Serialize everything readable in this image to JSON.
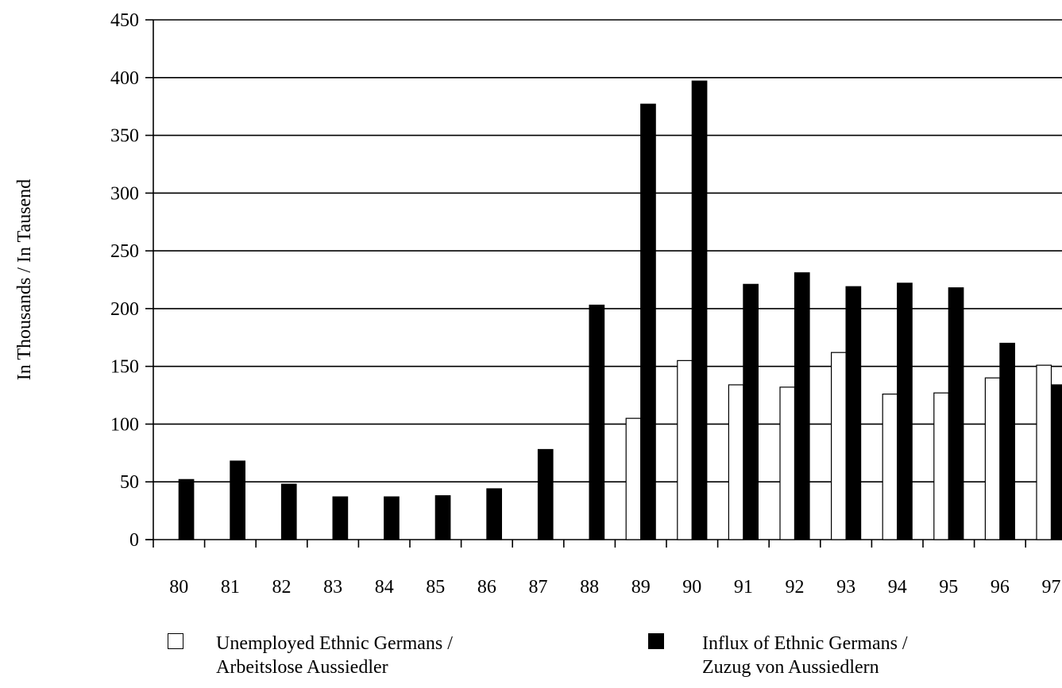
{
  "chart_data": {
    "type": "bar",
    "title": "",
    "xlabel": "",
    "ylabel": "In Thousands / In Tausend",
    "ylim": [
      0,
      450
    ],
    "yticks": [
      0,
      50,
      100,
      150,
      200,
      250,
      300,
      350,
      400,
      450
    ],
    "grid": true,
    "legend_position": "bottom",
    "categories": [
      "80",
      "81",
      "82",
      "83",
      "84",
      "85",
      "86",
      "87",
      "88",
      "89",
      "90",
      "91",
      "92",
      "93",
      "94",
      "95",
      "96",
      "97"
    ],
    "series": [
      {
        "name": "Unemployed Ethnic Germans / Arbeitslose Aussiedler",
        "legend_lines": [
          "Unemployed Ethnic Germans /",
          "Arbeitslose Aussiedler"
        ],
        "color": "#ffffff",
        "values": [
          null,
          null,
          null,
          null,
          null,
          null,
          null,
          null,
          null,
          105,
          155,
          134,
          132,
          162,
          126,
          127,
          140,
          151
        ]
      },
      {
        "name": "Influx of Ethnic Germans / Zuzug von Aussiedlern",
        "legend_lines": [
          "Influx of Ethnic Germans /",
          "Zuzug von Aussiedlern"
        ],
        "color": "#000000",
        "values": [
          52,
          68,
          48,
          37,
          37,
          38,
          44,
          78,
          203,
          377,
          397,
          221,
          231,
          219,
          222,
          218,
          170,
          134
        ]
      }
    ]
  }
}
